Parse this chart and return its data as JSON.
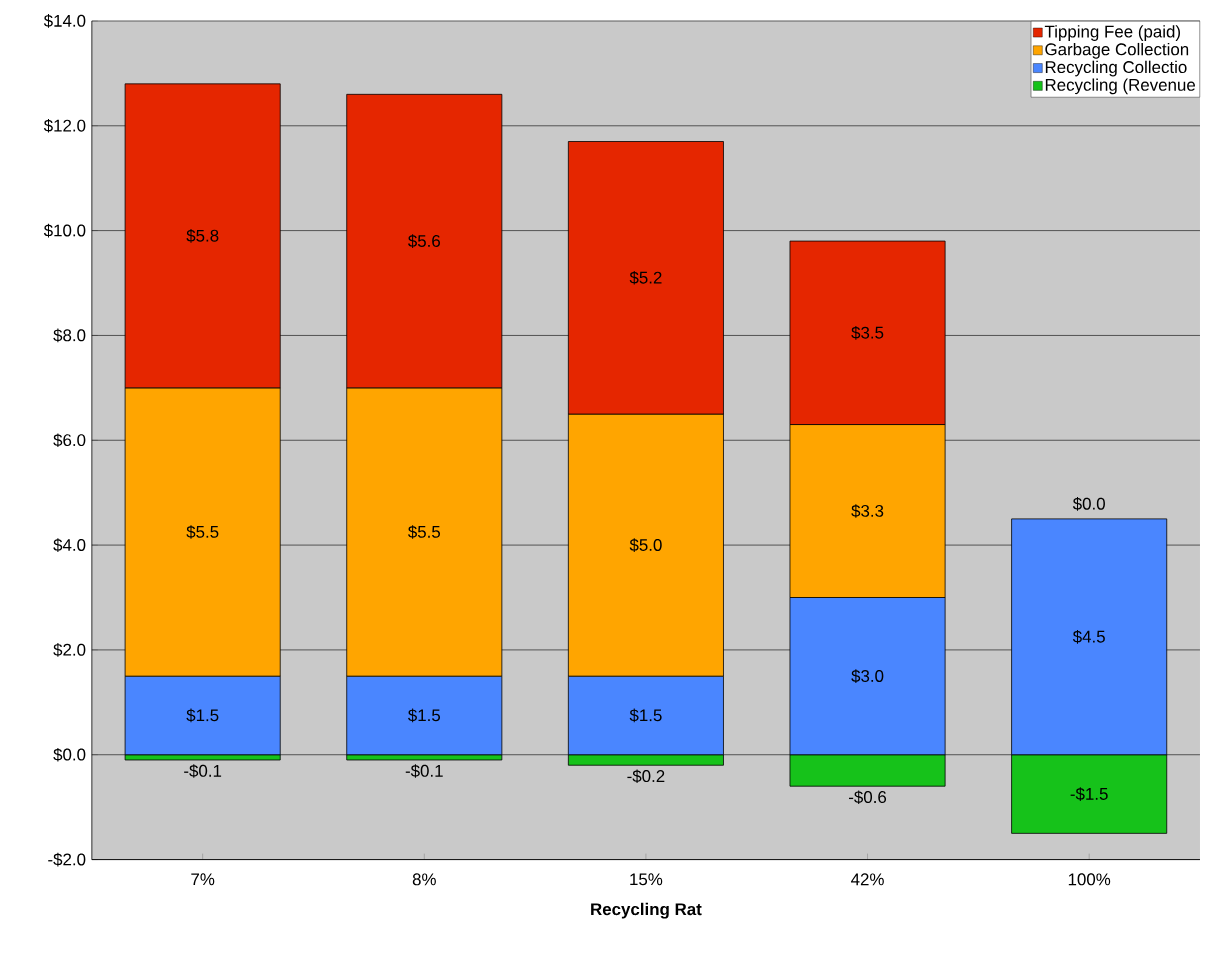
{
  "chart_data": {
    "type": "bar",
    "stacked": true,
    "xlabel": "Recycling Rat",
    "categories": [
      "7%",
      "8%",
      "15%",
      "42%",
      "100%"
    ],
    "series": [
      {
        "name": "Recycling (Revenue",
        "color": "#16c21a",
        "values": [
          -0.1,
          -0.1,
          -0.2,
          -0.6,
          -1.5
        ],
        "value_labels": [
          "-$0.1",
          "-$0.1",
          "-$0.2",
          "-$0.6",
          "-$1.5"
        ]
      },
      {
        "name": "Recycling Collectio",
        "color": "#4a86ff",
        "values": [
          1.5,
          1.5,
          1.5,
          3.0,
          4.5
        ],
        "value_labels": [
          "$1.5",
          "$1.5",
          "$1.5",
          "$3.0",
          "$4.5"
        ]
      },
      {
        "name": "Garbage Collection",
        "color": "#ffa500",
        "values": [
          5.5,
          5.5,
          5.0,
          3.3,
          0.0
        ],
        "value_labels": [
          "$5.5",
          "$5.5",
          "$5.0",
          "$3.3",
          null
        ]
      },
      {
        "name": "Tipping Fee (paid)",
        "color": "#e52600",
        "values": [
          5.8,
          5.6,
          5.2,
          3.5,
          0.0
        ],
        "value_labels": [
          "$5.8",
          "$5.6",
          "$5.2",
          "$3.5",
          "$0.0"
        ]
      }
    ],
    "ylim": [
      -2,
      14
    ],
    "yticks": [
      {
        "value": -2,
        "label": "-$2.0"
      },
      {
        "value": 0,
        "label": "$0.0"
      },
      {
        "value": 2,
        "label": "$2.0"
      },
      {
        "value": 4,
        "label": "$4.0"
      },
      {
        "value": 6,
        "label": "$6.0"
      },
      {
        "value": 8,
        "label": "$8.0"
      },
      {
        "value": 10,
        "label": "$10.0"
      },
      {
        "value": 12,
        "label": "$12.0"
      },
      {
        "value": 14,
        "label": "$14.0"
      }
    ],
    "grid": "y",
    "legend": "top right"
  }
}
